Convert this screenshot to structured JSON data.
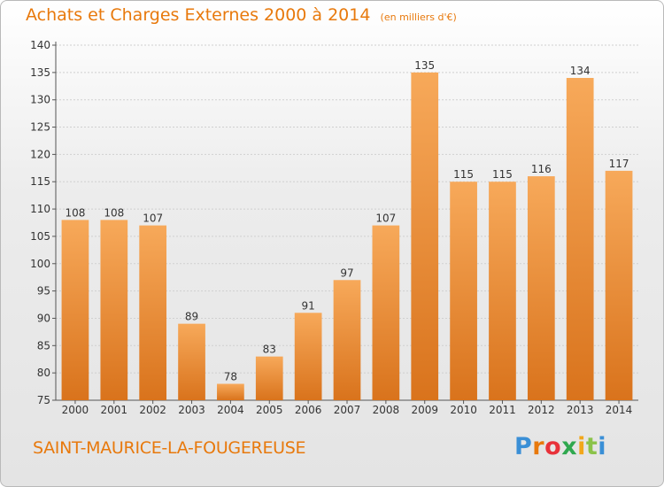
{
  "header": {
    "title": "Achats et Charges Externes 2000 à 2014",
    "subtitle": "(en milliers d'€)"
  },
  "footer": {
    "city": "SAINT-MAURICE-LA-FOUGEREUSE",
    "logo": "Proxiti",
    "logo_colors": [
      "#3a8fd6",
      "#e8790c",
      "#e8323a",
      "#2fa84f",
      "#f2a71b",
      "#8bc34a",
      "#3a8fd6"
    ]
  },
  "colors": {
    "bar_light": "#f7a95a",
    "bar_dark": "#d9731c",
    "title": "#e8790c"
  },
  "chart_data": {
    "type": "bar",
    "title": "Achats et Charges Externes 2000 à 2014",
    "subtitle": "(en milliers d'€)",
    "categories": [
      "2000",
      "2001",
      "2002",
      "2003",
      "2004",
      "2005",
      "2006",
      "2007",
      "2008",
      "2009",
      "2010",
      "2011",
      "2012",
      "2013",
      "2014"
    ],
    "values": [
      108,
      108,
      107,
      89,
      78,
      83,
      91,
      97,
      107,
      135,
      115,
      115,
      116,
      134,
      117
    ],
    "ylim": [
      75,
      140
    ],
    "yticks": [
      75,
      80,
      85,
      90,
      95,
      100,
      105,
      110,
      115,
      120,
      125,
      130,
      135,
      140
    ],
    "grid": true,
    "legend": "none"
  }
}
